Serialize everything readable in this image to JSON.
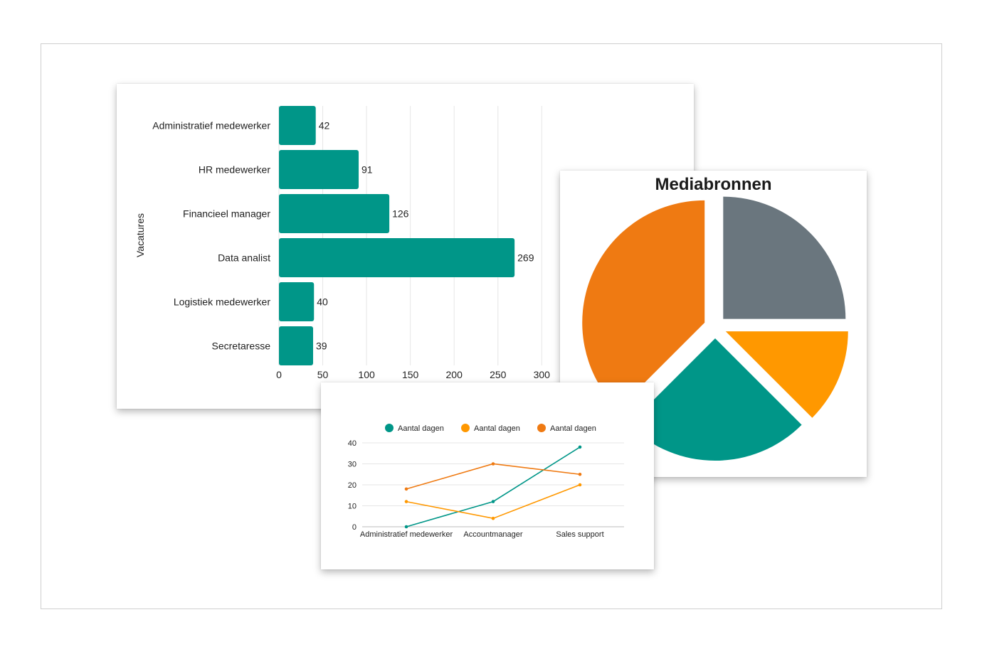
{
  "colors": {
    "teal": "#009688",
    "orange_light": "#ff9800",
    "orange_dark": "#ef7a12",
    "slate": "#6a767e",
    "grid": "#e6e6e6"
  },
  "chart_data": [
    {
      "type": "bar",
      "orientation": "horizontal",
      "ylabel": "Vacatures",
      "xlabel": "",
      "categories": [
        "Administratief medewerker",
        "HR medewerker",
        "Financieel manager",
        "Data analist",
        "Logistiek medewerker",
        "Secretaresse"
      ],
      "values": [
        42,
        91,
        126,
        269,
        40,
        39
      ],
      "xlim": [
        0,
        300
      ],
      "xticks": [
        "0",
        "50",
        "100",
        "150",
        "200",
        "250",
        "300"
      ],
      "data_labels": true,
      "grid": "vertical",
      "color": "#009688"
    },
    {
      "type": "pie",
      "title": "Mediabronnen",
      "values": [
        25,
        12.5,
        25,
        37.5
      ],
      "colors": [
        "#6a767e",
        "#ff9800",
        "#009688",
        "#ef7a12"
      ],
      "exploded": true,
      "legend": "none"
    },
    {
      "type": "line",
      "categories": [
        "Administratief medewerker",
        "Accountmanager",
        "Sales support"
      ],
      "series": [
        {
          "name": "Aantal dagen",
          "color": "#009688",
          "values": [
            0,
            12,
            38
          ]
        },
        {
          "name": "Aantal dagen",
          "color": "#ff9800",
          "values": [
            12,
            4,
            20
          ]
        },
        {
          "name": "Aantal dagen",
          "color": "#ef7a12",
          "values": [
            18,
            30,
            25
          ]
        }
      ],
      "ylim": [
        0,
        40
      ],
      "yticks": [
        "0",
        "10",
        "20",
        "30",
        "40"
      ],
      "grid": "horizontal",
      "legend": "top"
    }
  ]
}
